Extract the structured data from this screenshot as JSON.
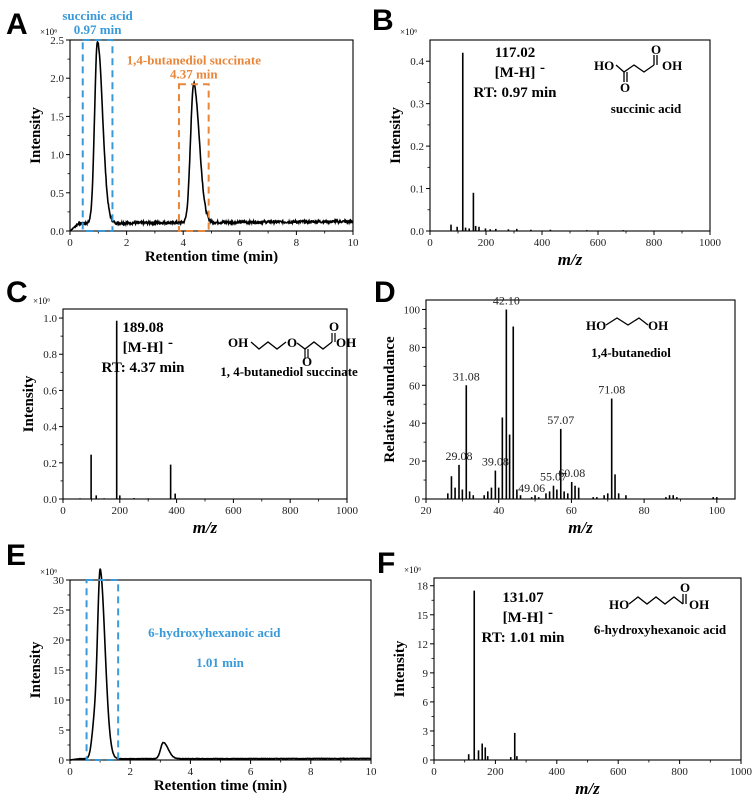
{
  "chart_data": [
    {
      "panel": "A",
      "type": "line",
      "xlabel": "Retention time (min)",
      "ylabel": "Intensity",
      "multiplier": "×10⁶",
      "xlim": [
        0,
        10
      ],
      "ylim": [
        0,
        2.5
      ],
      "xticks": [
        0,
        2,
        4,
        6,
        8,
        10
      ],
      "yticks": [
        0.0,
        0.5,
        1.0,
        1.5,
        2.0,
        2.5
      ],
      "ytick_labels": [
        "0.0",
        "0.5",
        "1.0",
        "1.5",
        "2.0",
        "2.5"
      ],
      "baseline": 0.1,
      "peaks": [
        {
          "rt": 0.97,
          "height": 2.38,
          "width": 0.1
        },
        {
          "rt": 4.37,
          "height": 1.82,
          "width": 0.11
        }
      ],
      "boxes": [
        {
          "x": [
            0.45,
            1.5
          ],
          "y": [
            0.0,
            2.5
          ],
          "color": "#3a9ad9",
          "line1": "succinic acid",
          "line2": "0.97 min"
        },
        {
          "x": [
            3.85,
            4.9
          ],
          "y": [
            0.0,
            1.92
          ],
          "color": "#e8863a",
          "line1": "1,4-butanediol succinate",
          "line2": "4.37 min"
        }
      ]
    },
    {
      "panel": "B",
      "type": "bar",
      "xlabel": "m/z",
      "ylabel": "Intensity",
      "multiplier": "×10⁶",
      "xlim": [
        0,
        1000
      ],
      "ylim": [
        0,
        0.45
      ],
      "xticks": [
        0,
        200,
        400,
        600,
        800,
        1000
      ],
      "yticks": [
        0.0,
        0.1,
        0.2,
        0.3,
        0.4
      ],
      "ytick_labels": [
        "0.0",
        "0.1",
        "0.2",
        "0.3",
        "0.4"
      ],
      "peaks": [
        [
          75,
          0.015
        ],
        [
          97,
          0.01
        ],
        [
          117.02,
          0.42
        ],
        [
          127,
          0.008
        ],
        [
          140,
          0.006
        ],
        [
          155,
          0.09
        ],
        [
          163,
          0.012
        ],
        [
          175,
          0.01
        ],
        [
          198,
          0.006
        ],
        [
          215,
          0.004
        ],
        [
          235,
          0.005
        ],
        [
          280,
          0.004
        ],
        [
          310,
          0.005
        ],
        [
          360,
          0.003
        ],
        [
          430,
          0.003
        ],
        [
          560,
          0.002
        ],
        [
          690,
          0.002
        ]
      ],
      "annotation": {
        "mz": "117.02",
        "ion": "[M-H]",
        "charge": "-",
        "rt": "RT: 0.97 min"
      },
      "compound": "succinic acid",
      "structure_labels": {
        "left": "HO",
        "right": "OH",
        "o1": "O",
        "o2": "O"
      }
    },
    {
      "panel": "C",
      "type": "bar",
      "xlabel": "m/z",
      "ylabel": "Intensity",
      "multiplier": "×10⁶",
      "xlim": [
        0,
        1000
      ],
      "ylim": [
        0,
        1.05
      ],
      "xticks": [
        0,
        200,
        400,
        600,
        800,
        1000
      ],
      "yticks": [
        0.0,
        0.2,
        0.4,
        0.6,
        0.8,
        1.0
      ],
      "ytick_labels": [
        "0.0",
        "0.2",
        "0.4",
        "0.6",
        "0.8",
        "1.0"
      ],
      "peaks": [
        [
          60,
          0.004
        ],
        [
          99,
          0.245
        ],
        [
          117,
          0.02
        ],
        [
          145,
          0.004
        ],
        [
          189.08,
          0.985
        ],
        [
          200,
          0.02
        ],
        [
          250,
          0.005
        ],
        [
          300,
          0.004
        ],
        [
          379,
          0.19
        ],
        [
          395,
          0.03
        ],
        [
          500,
          0.003
        ]
      ],
      "annotation": {
        "mz": "189.08",
        "ion": "[M-H]",
        "charge": "-",
        "rt": "RT: 4.37 min"
      },
      "compound": "1, 4-butanediol succinate",
      "structure_labels": {
        "left": "OH",
        "right": "OH",
        "o1": "O",
        "o2": "O",
        "o3": "O"
      }
    },
    {
      "panel": "D",
      "type": "bar",
      "xlabel": "m/z",
      "ylabel": "Relative abundance",
      "xlim": [
        20,
        105
      ],
      "ylim": [
        0,
        105
      ],
      "xticks": [
        20,
        40,
        60,
        80,
        100
      ],
      "yticks": [
        0,
        20,
        40,
        60,
        80,
        100
      ],
      "ytick_labels": [
        "0",
        "20",
        "40",
        "60",
        "80",
        "100"
      ],
      "peaks": [
        [
          26,
          3
        ],
        [
          27,
          12
        ],
        [
          28,
          6
        ],
        [
          29.08,
          18
        ],
        [
          30,
          5
        ],
        [
          31.08,
          60
        ],
        [
          32,
          4
        ],
        [
          33,
          2
        ],
        [
          36,
          2
        ],
        [
          37,
          4
        ],
        [
          38,
          6
        ],
        [
          39.08,
          15
        ],
        [
          40,
          6
        ],
        [
          41,
          43
        ],
        [
          42.1,
          100
        ],
        [
          43,
          34
        ],
        [
          44,
          91
        ],
        [
          45,
          5
        ],
        [
          46,
          2
        ],
        [
          49.06,
          1
        ],
        [
          50,
          2
        ],
        [
          51,
          1
        ],
        [
          53,
          3
        ],
        [
          54,
          4
        ],
        [
          55.07,
          7
        ],
        [
          56,
          5
        ],
        [
          57.07,
          37
        ],
        [
          58,
          4
        ],
        [
          59,
          3
        ],
        [
          60.08,
          9
        ],
        [
          61,
          7
        ],
        [
          62,
          6
        ],
        [
          66,
          1
        ],
        [
          67,
          1
        ],
        [
          69,
          2
        ],
        [
          70,
          3
        ],
        [
          71.08,
          53
        ],
        [
          72,
          13
        ],
        [
          73,
          3
        ],
        [
          75,
          2
        ],
        [
          86,
          1
        ],
        [
          87,
          2
        ],
        [
          88,
          2
        ],
        [
          89,
          1
        ],
        [
          99,
          1
        ],
        [
          100,
          1
        ]
      ],
      "peak_labels": [
        {
          "mz": 42.1,
          "text": "42.10"
        },
        {
          "mz": 31.08,
          "text": "31.08"
        },
        {
          "mz": 71.08,
          "text": "71.08"
        },
        {
          "mz": 57.07,
          "text": "57.07"
        },
        {
          "mz": 55.07,
          "text": "55.07"
        },
        {
          "mz": 29.08,
          "text": "29.08"
        },
        {
          "mz": 39.08,
          "text": "39.08"
        },
        {
          "mz": 60.08,
          "text": "60.08"
        },
        {
          "mz": 49.06,
          "text": "49.06"
        }
      ],
      "compound": "1,4-butanediol",
      "structure_labels": {
        "left": "HO",
        "right": "OH"
      }
    },
    {
      "panel": "E",
      "type": "line",
      "xlabel": "Retention time (min)",
      "ylabel": "Intensity",
      "multiplier": "×10⁶",
      "xlim": [
        0,
        10
      ],
      "ylim": [
        0,
        30
      ],
      "xticks": [
        0,
        2,
        4,
        6,
        8,
        10
      ],
      "yticks": [
        0,
        5,
        10,
        15,
        20,
        25,
        30
      ],
      "ytick_labels": [
        "0",
        "5",
        "10",
        "15",
        "20",
        "25",
        "30"
      ],
      "baseline": 0.2,
      "peaks": [
        {
          "rt": 1.01,
          "height": 28.6,
          "width": 0.09
        },
        {
          "rt": 0.82,
          "height": 6.0,
          "width": 0.09
        },
        {
          "rt": 3.1,
          "height": 2.7,
          "width": 0.09
        }
      ],
      "boxes": [
        {
          "x": [
            0.55,
            1.6
          ],
          "y": [
            0.0,
            30.0
          ],
          "color": "#3a9ad9",
          "line1": "6-hydroxyhexanoic acid",
          "line2": "1.01 min"
        }
      ]
    },
    {
      "panel": "F",
      "type": "bar",
      "xlabel": "m/z",
      "ylabel": "Intensity",
      "multiplier": "×10⁶",
      "xlim": [
        0,
        1000
      ],
      "ylim": [
        0,
        18.8
      ],
      "xticks": [
        0,
        200,
        400,
        600,
        800,
        1000
      ],
      "yticks": [
        0,
        3,
        6,
        9,
        12,
        15,
        18
      ],
      "ytick_labels": [
        "0",
        "3",
        "6",
        "9",
        "12",
        "15",
        "18"
      ],
      "peaks": [
        [
          113,
          0.6
        ],
        [
          131.07,
          17.5
        ],
        [
          145,
          1.0
        ],
        [
          157,
          1.7
        ],
        [
          167,
          1.3
        ],
        [
          175,
          0.4
        ],
        [
          250,
          0.3
        ],
        [
          263,
          2.8
        ],
        [
          270,
          0.4
        ]
      ],
      "annotation": {
        "mz": "131.07",
        "ion": "[M-H]",
        "charge": "-",
        "rt": "RT: 1.01 min"
      },
      "compound": "6-hydroxyhexanoic acid",
      "structure_labels": {
        "left": "HO",
        "right": "OH",
        "o1": "O"
      }
    }
  ],
  "panel_labels": [
    "A",
    "B",
    "C",
    "D",
    "E",
    "F"
  ]
}
